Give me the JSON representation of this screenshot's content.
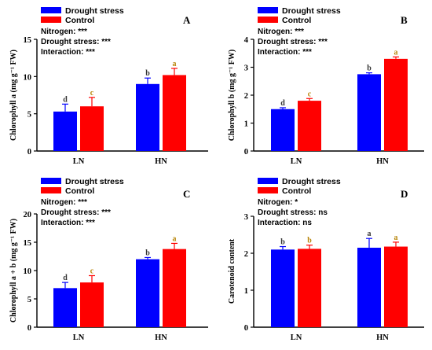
{
  "colors": {
    "drought": "#0000ff",
    "control": "#ff0000",
    "axis": "#000000"
  },
  "chart_data": [
    {
      "type": "bar",
      "panel_letter": "A",
      "ylabel": "Chlorophyll a (mg g⁻¹ FW)",
      "categories": [
        "LN",
        "HN"
      ],
      "ylim": [
        0,
        15
      ],
      "yticks": [
        "0",
        "5",
        "10",
        "15"
      ],
      "legend": [
        "Drought stress",
        "Control"
      ],
      "stats": [
        "Nitrogen: ***",
        "Drought stress: ***",
        "Interaction: ***"
      ],
      "series": [
        {
          "name": "Drought stress",
          "values": [
            5.3,
            9.0
          ],
          "errors": [
            1.0,
            0.8
          ],
          "labels": [
            "d",
            "b"
          ]
        },
        {
          "name": "Control",
          "values": [
            6.0,
            10.2
          ],
          "errors": [
            1.2,
            0.9
          ],
          "labels": [
            "c",
            "a"
          ]
        }
      ]
    },
    {
      "type": "bar",
      "panel_letter": "B",
      "ylabel": "Chlorophyll b (mg g⁻¹ FW)",
      "categories": [
        "LN",
        "HN"
      ],
      "ylim": [
        0,
        4
      ],
      "yticks": [
        "0",
        "1",
        "2",
        "3",
        "4"
      ],
      "legend": [
        "Drought stress",
        "Control"
      ],
      "stats": [
        "Nitrogen: ***",
        "Drought stress: ***",
        "Interaction: ***"
      ],
      "series": [
        {
          "name": "Drought stress",
          "values": [
            1.5,
            2.75
          ],
          "errors": [
            0.05,
            0.05
          ],
          "labels": [
            "d",
            "b"
          ]
        },
        {
          "name": "Control",
          "values": [
            1.8,
            3.3
          ],
          "errors": [
            0.08,
            0.07
          ],
          "labels": [
            "c",
            "a"
          ]
        }
      ]
    },
    {
      "type": "bar",
      "panel_letter": "C",
      "ylabel": "Chlorophyll a + b (mg g⁻¹ FW)",
      "categories": [
        "LN",
        "HN"
      ],
      "ylim": [
        0,
        20
      ],
      "yticks": [
        "0",
        "5",
        "10",
        "15",
        "20"
      ],
      "legend": [
        "Drought stress",
        "Control"
      ],
      "stats": [
        "Nitrogen: ***",
        "Drought stress: ***",
        "Interaction: ***"
      ],
      "series": [
        {
          "name": "Drought stress",
          "values": [
            6.9,
            12.0
          ],
          "errors": [
            1.0,
            0.3
          ],
          "labels": [
            "d",
            "b"
          ]
        },
        {
          "name": "Control",
          "values": [
            7.9,
            13.8
          ],
          "errors": [
            1.2,
            1.0
          ],
          "labels": [
            "c",
            "a"
          ]
        }
      ]
    },
    {
      "type": "bar",
      "panel_letter": "D",
      "ylabel": "Carotenoid content",
      "categories": [
        "LN",
        "HN"
      ],
      "ylim": [
        0,
        3
      ],
      "yticks": [
        "0",
        "1",
        "2",
        "3"
      ],
      "legend": [
        "Drought stress",
        "Control"
      ],
      "stats": [
        "Nitrogen: *",
        "Drought stress: ns",
        "Interaction: ns"
      ],
      "series": [
        {
          "name": "Drought stress",
          "values": [
            2.1,
            2.15
          ],
          "errors": [
            0.08,
            0.25
          ],
          "labels": [
            "b",
            "a"
          ]
        },
        {
          "name": "Control",
          "values": [
            2.12,
            2.18
          ],
          "errors": [
            0.1,
            0.12
          ],
          "labels": [
            "b",
            "a"
          ]
        }
      ]
    }
  ]
}
